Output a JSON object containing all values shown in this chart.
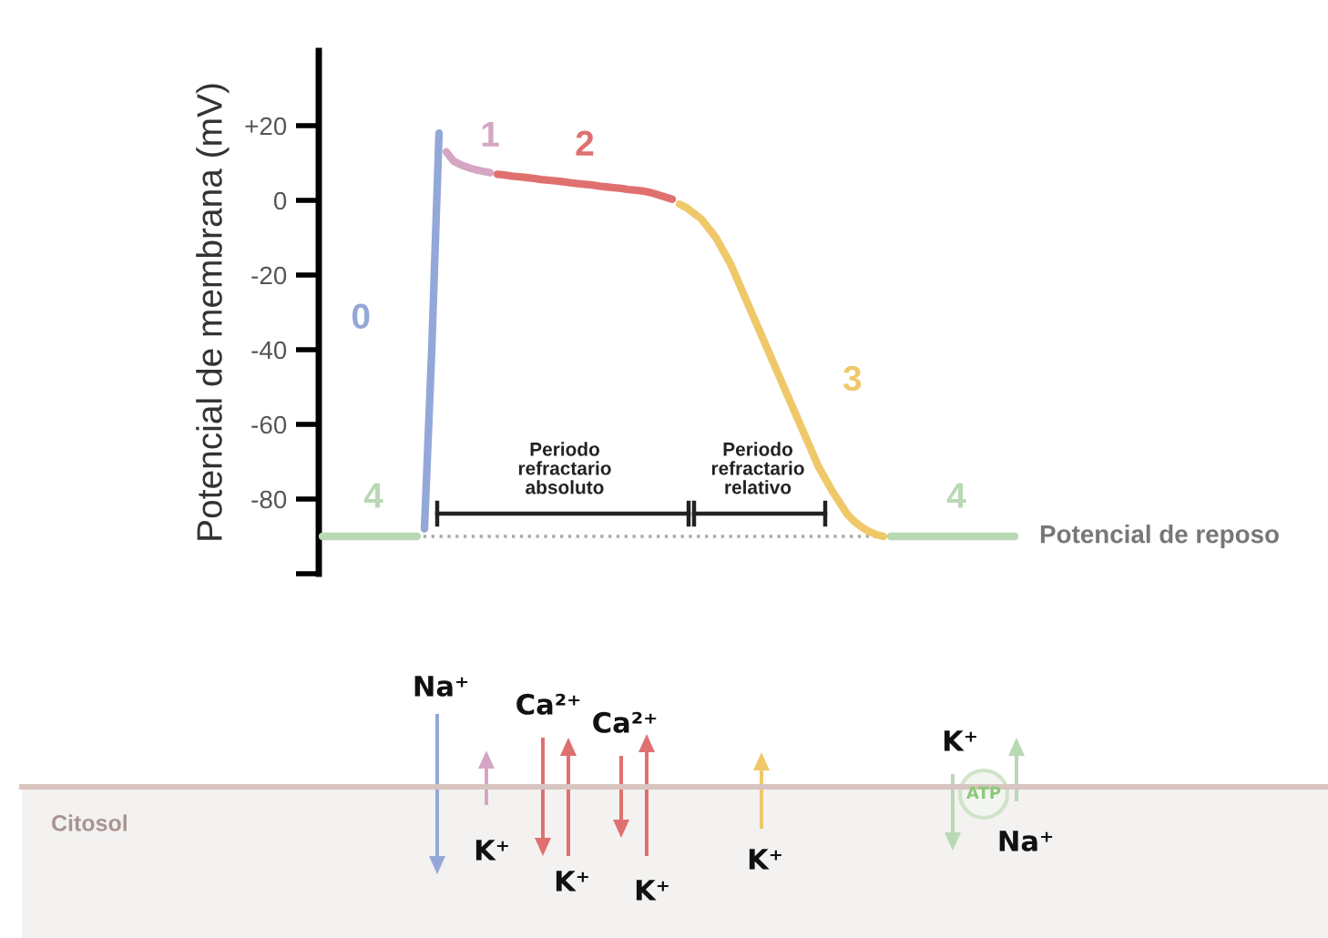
{
  "chart_data": {
    "type": "line",
    "ylabel": "Potencial de membrana (mV)",
    "categories": [
      null,
      null,
      null,
      null,
      null,
      null,
      null,
      null,
      null,
      null,
      null,
      null,
      null,
      null,
      null,
      null,
      null,
      null,
      null,
      null,
      null,
      null,
      null,
      null,
      null,
      null,
      null,
      null,
      null,
      null,
      null,
      null,
      null,
      null,
      null,
      null,
      null,
      null,
      null,
      null,
      null,
      null,
      null,
      null,
      null,
      null,
      null,
      null,
      null,
      null,
      null,
      null,
      null,
      null,
      null,
      null,
      null,
      null,
      null,
      null,
      null,
      null,
      null,
      null,
      null,
      null,
      null,
      null,
      null,
      null,
      null,
      null,
      null,
      null,
      null,
      null,
      null,
      null,
      null,
      null,
      null,
      null,
      null,
      null,
      null,
      null,
      null,
      null,
      null,
      null,
      null,
      null,
      null,
      null,
      null,
      null
    ],
    "series": [
      {
        "name": "4",
        "color": "#b9d8b4",
        "values": [
          -90,
          -90,
          -90,
          -90,
          -90,
          -90,
          -90,
          -90,
          -90,
          -90,
          -90,
          -90,
          -90,
          -90,
          null,
          null,
          null,
          null,
          null,
          null,
          null,
          null,
          null,
          null,
          null,
          null,
          null,
          null,
          null,
          null,
          null,
          null,
          null,
          null,
          null,
          null,
          null,
          null,
          null,
          null,
          null,
          null,
          null,
          null,
          null,
          null,
          null,
          null,
          null,
          null,
          null,
          null,
          null,
          null,
          null,
          null,
          null,
          null,
          null,
          null,
          null,
          null,
          null,
          null,
          null,
          null,
          null,
          null,
          null,
          null,
          null,
          null,
          null,
          null,
          null,
          null,
          null,
          null,
          -90,
          -90,
          -90,
          -90,
          -90,
          -90,
          -90,
          -90,
          -90,
          -90,
          -90,
          -90,
          -90,
          -90,
          -90,
          -90,
          -90,
          -90
        ]
      },
      {
        "name": "0",
        "color": "#93a8d8",
        "values": [
          null,
          null,
          null,
          null,
          null,
          null,
          null,
          null,
          null,
          null,
          null,
          null,
          null,
          null,
          -88,
          -40,
          18,
          null,
          null,
          null,
          null,
          null,
          null,
          null,
          null,
          null,
          null,
          null,
          null,
          null,
          null,
          null,
          null,
          null,
          null,
          null,
          null,
          null,
          null,
          null,
          null,
          null,
          null,
          null,
          null,
          null,
          null,
          null,
          null,
          null,
          null,
          null,
          null,
          null,
          null,
          null,
          null,
          null,
          null,
          null,
          null,
          null,
          null,
          null,
          null,
          null,
          null,
          null,
          null,
          null,
          null,
          null,
          null,
          null,
          null,
          null,
          null,
          null,
          null,
          null,
          null,
          null,
          null,
          null,
          null,
          null,
          null,
          null,
          null,
          null,
          null,
          null,
          null,
          null,
          null,
          null
        ]
      },
      {
        "name": "1",
        "color": "#d4a6c4",
        "values": [
          null,
          null,
          null,
          null,
          null,
          null,
          null,
          null,
          null,
          null,
          null,
          null,
          null,
          null,
          null,
          null,
          null,
          13,
          10.5,
          9.5,
          8.8,
          8.2,
          7.8,
          7.4,
          null,
          null,
          null,
          null,
          null,
          null,
          null,
          null,
          null,
          null,
          null,
          null,
          null,
          null,
          null,
          null,
          null,
          null,
          null,
          null,
          null,
          null,
          null,
          null,
          null,
          null,
          null,
          null,
          null,
          null,
          null,
          null,
          null,
          null,
          null,
          null,
          null,
          null,
          null,
          null,
          null,
          null,
          null,
          null,
          null,
          null,
          null,
          null,
          null,
          null,
          null,
          null,
          null,
          null,
          null,
          null,
          null,
          null,
          null,
          null,
          null,
          null,
          null,
          null,
          null,
          null,
          null,
          null,
          null,
          null,
          null,
          null
        ]
      },
      {
        "name": "2",
        "color": "#e07070",
        "values": [
          null,
          null,
          null,
          null,
          null,
          null,
          null,
          null,
          null,
          null,
          null,
          null,
          null,
          null,
          null,
          null,
          null,
          null,
          null,
          null,
          null,
          null,
          null,
          null,
          7,
          6.8,
          6.5,
          6.3,
          6.1,
          5.9,
          5.6,
          5.4,
          5.2,
          5,
          4.7,
          4.5,
          4.3,
          4.1,
          3.8,
          3.6,
          3.4,
          3.2,
          2.9,
          2.7,
          2.5,
          2.1,
          1.5,
          0.9,
          0.3,
          null,
          null,
          null,
          null,
          null,
          null,
          null,
          null,
          null,
          null,
          null,
          null,
          null,
          null,
          null,
          null,
          null,
          null,
          null,
          null,
          null,
          null,
          null,
          null,
          null,
          null,
          null,
          null,
          null,
          null,
          null,
          null,
          null,
          null,
          null,
          null,
          null,
          null,
          null,
          null,
          null,
          null,
          null,
          null,
          null,
          null,
          null
        ]
      },
      {
        "name": "3",
        "color": "#efc86a",
        "values": [
          null,
          null,
          null,
          null,
          null,
          null,
          null,
          null,
          null,
          null,
          null,
          null,
          null,
          null,
          null,
          null,
          null,
          null,
          null,
          null,
          null,
          null,
          null,
          null,
          null,
          null,
          null,
          null,
          null,
          null,
          null,
          null,
          null,
          null,
          null,
          null,
          null,
          null,
          null,
          null,
          null,
          null,
          null,
          null,
          null,
          null,
          null,
          null,
          null,
          -1,
          -2,
          -3.5,
          -5,
          -7.5,
          -10,
          -13.5,
          -17,
          -21.5,
          -26,
          -30.5,
          -35,
          -39.5,
          -44,
          -48.5,
          -53,
          -57.5,
          -62,
          -66.5,
          -71,
          -74.5,
          -78,
          -81,
          -84,
          -86,
          -87.5,
          -88.7,
          -89.5,
          -90,
          null,
          null,
          null,
          null,
          null,
          null,
          null,
          null,
          null,
          null,
          null,
          null,
          null,
          null,
          null,
          null,
          null,
          null
        ]
      }
    ],
    "ylim": [
      -100,
      40
    ],
    "yticks": [
      {
        "value": 20,
        "label": "+20"
      },
      0,
      -20,
      -40,
      -60,
      -80,
      {
        "value": -100,
        "label": null
      }
    ],
    "ref_lines": [
      {
        "axis": "y",
        "value": -90,
        "label": "Potencial de reposo",
        "color": "#aaaaaa",
        "line_style": "dotted"
      }
    ],
    "annotations": [
      "Periodo\nrefractario\nabsoluto",
      "Periodo\nrefractario\nrelativo",
      "Citosol",
      "Na⁺",
      "K⁺",
      "Ca²⁺",
      "K⁺",
      "Ca²⁺",
      "K⁺",
      "K⁺",
      "K⁺",
      "ATP",
      "Na⁺"
    ],
    "grid": false,
    "legend": false,
    "tick_labels": "y",
    "line_style": "solid",
    "marker": "none"
  }
}
